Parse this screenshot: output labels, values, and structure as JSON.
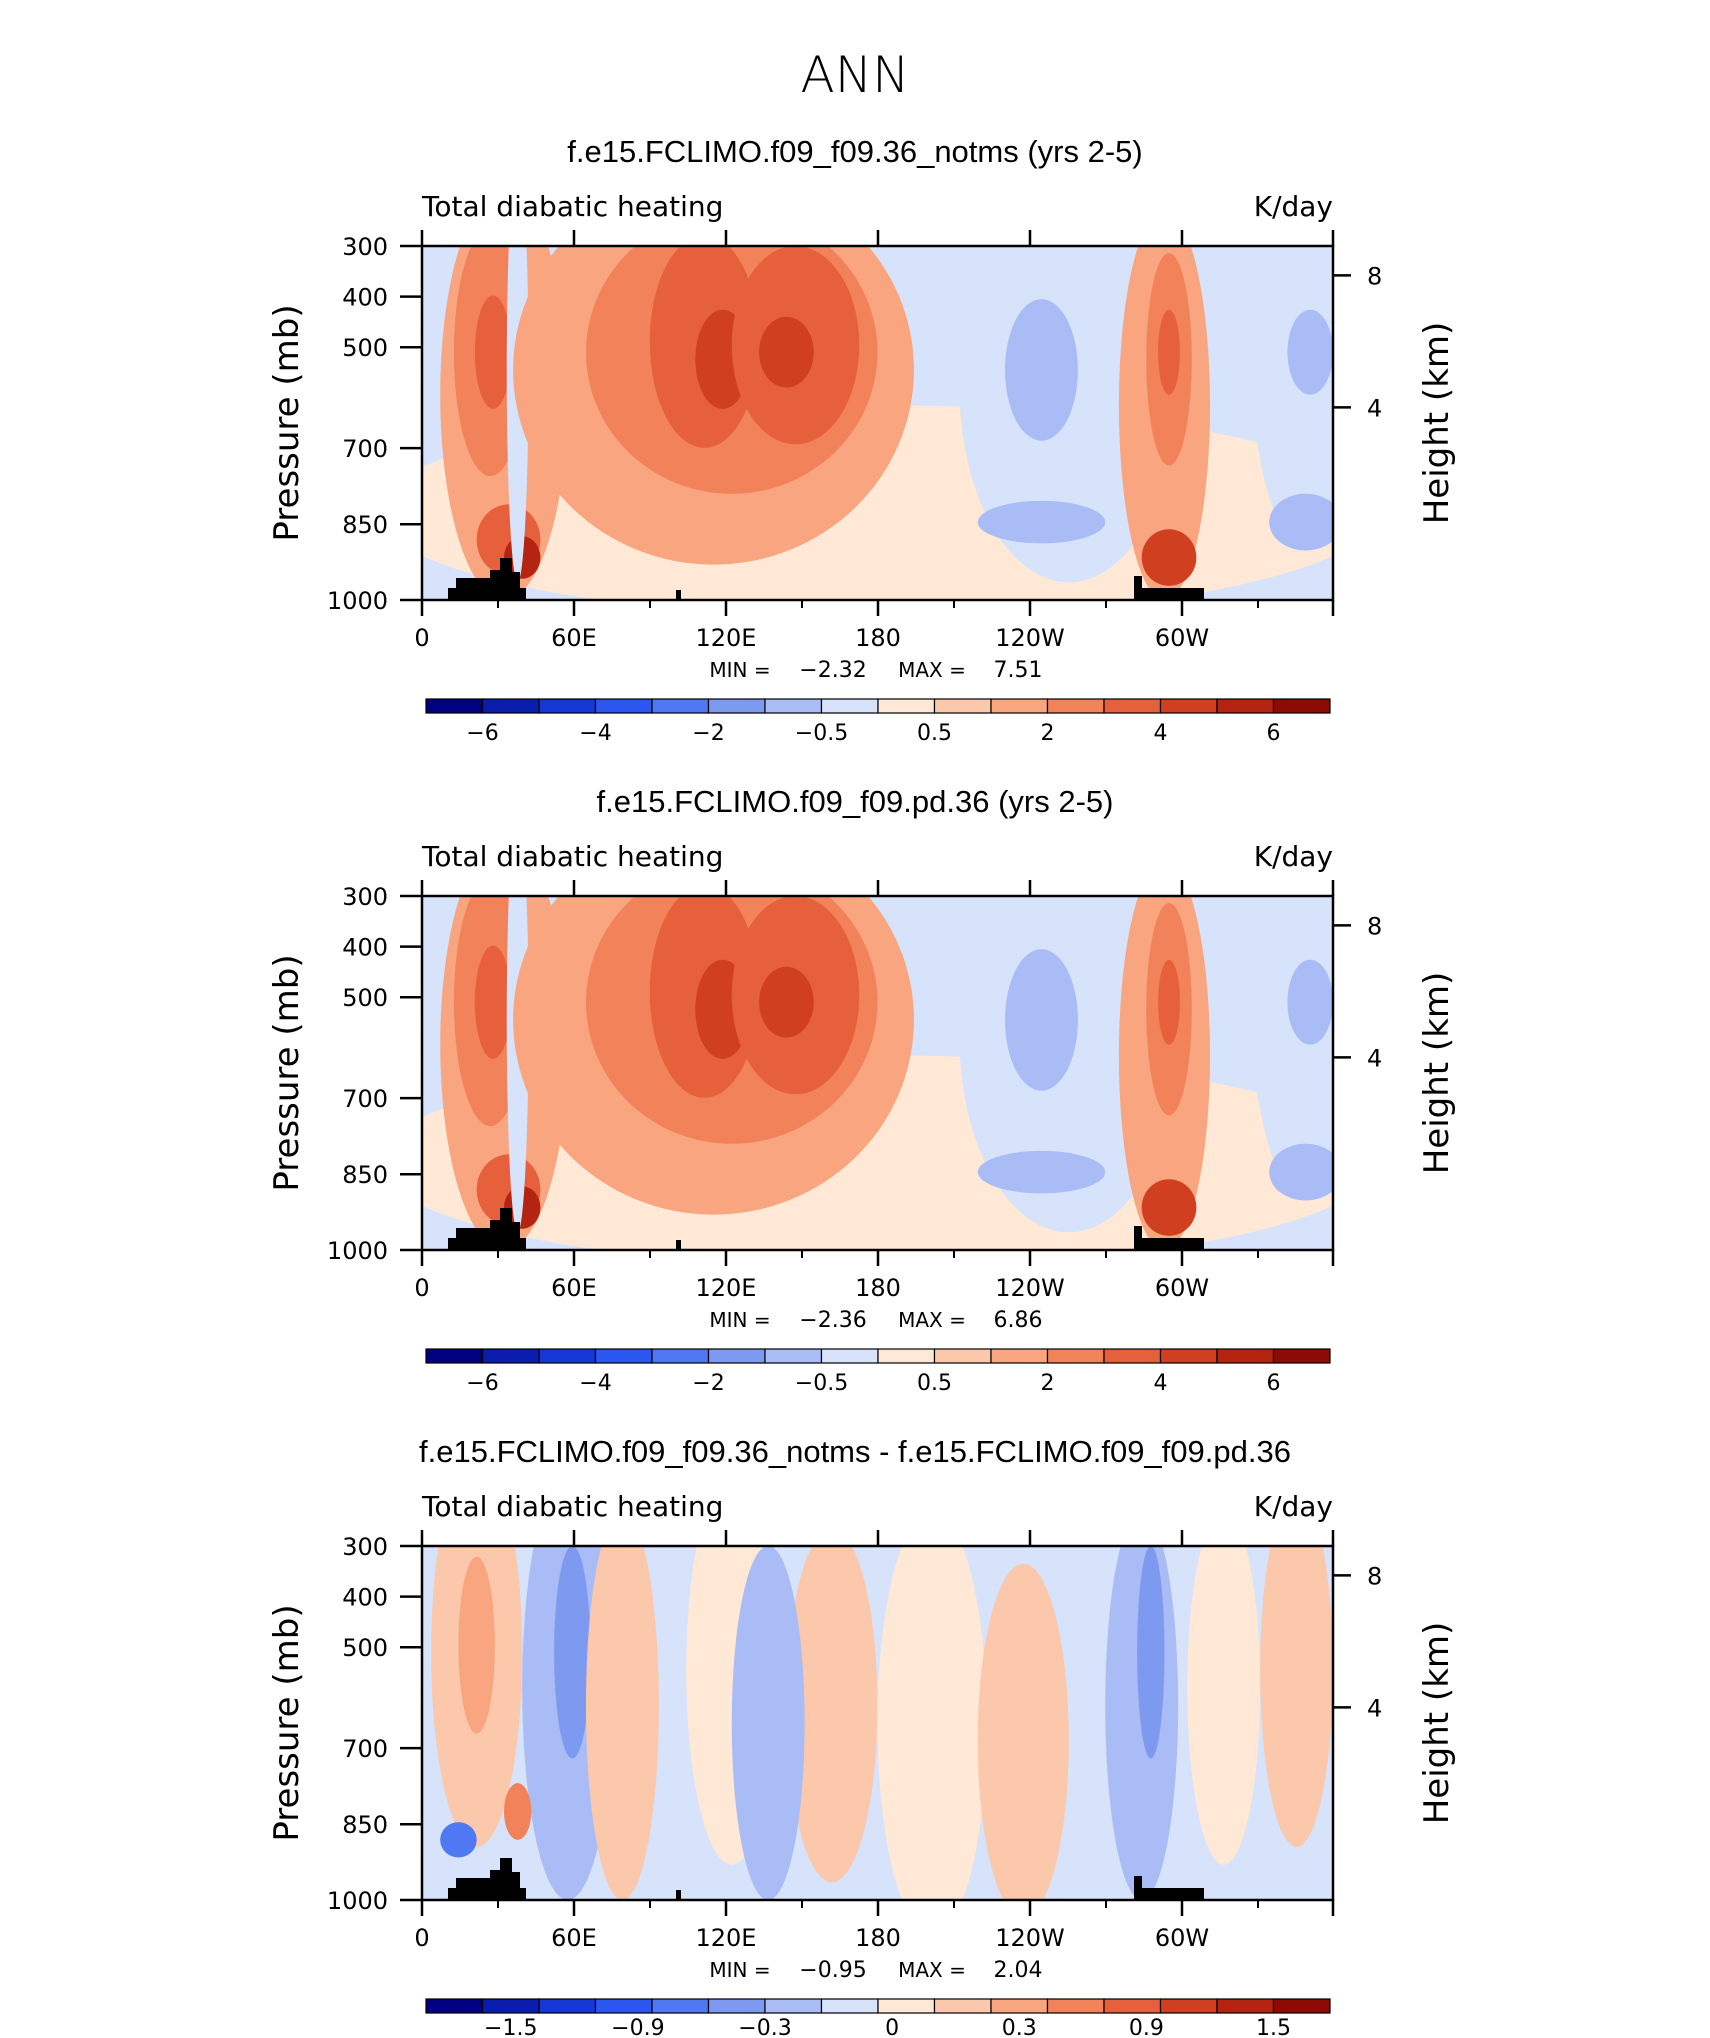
{
  "page_title": "ANN",
  "colors": {
    "diverging_18": [
      "#000080",
      "#0a1dae",
      "#1437d6",
      "#2b57f0",
      "#4f78f2",
      "#7e99f0",
      "#a9bcf5",
      "#d6e3fb",
      "#ffe9d6",
      "#fcc8ab",
      "#f8a580",
      "#f2825a",
      "#e6603c",
      "#d03f20",
      "#b42410",
      "#8e0a04"
    ],
    "terrain": "#000000"
  },
  "chart_data": [
    {
      "type": "heatmap",
      "title": "f.e15.FCLIMO.f09_f09.36_notms (yrs 2-5)",
      "left_string": "Total diabatic heating",
      "right_string": "K/day",
      "xlabel": "",
      "ylabel": "Pressure (mb)",
      "y2label": "Height (km)",
      "x_ticks": [
        "0",
        "60E",
        "120E",
        "180",
        "120W",
        "60W"
      ],
      "y_ticks": [
        "300",
        "400",
        "500",
        "700",
        "850",
        "1000"
      ],
      "y2_ticks": [
        "8",
        "4"
      ],
      "min_label": "MIN =",
      "min_value": "−2.32",
      "max_label": "MAX =",
      "max_value": "7.51",
      "colorbar_labels": [
        "−6",
        "−4",
        "−2",
        "−0.5",
        "0.5",
        "2",
        "4",
        "6"
      ],
      "levels": [
        -7,
        -6,
        -5,
        -4,
        -3,
        -2,
        -1,
        -0.5,
        0.5,
        1,
        2,
        3,
        4,
        5,
        6,
        7
      ],
      "value_range": [
        -2.32,
        7.51
      ]
    },
    {
      "type": "heatmap",
      "title": "f.e15.FCLIMO.f09_f09.pd.36 (yrs 2-5)",
      "left_string": "Total diabatic heating",
      "right_string": "K/day",
      "xlabel": "",
      "ylabel": "Pressure (mb)",
      "y2label": "Height (km)",
      "x_ticks": [
        "0",
        "60E",
        "120E",
        "180",
        "120W",
        "60W"
      ],
      "y_ticks": [
        "300",
        "400",
        "500",
        "700",
        "850",
        "1000"
      ],
      "y2_ticks": [
        "8",
        "4"
      ],
      "min_label": "MIN =",
      "min_value": "−2.36",
      "max_label": "MAX =",
      "max_value": "6.86",
      "colorbar_labels": [
        "−6",
        "−4",
        "−2",
        "−0.5",
        "0.5",
        "2",
        "4",
        "6"
      ],
      "levels": [
        -7,
        -6,
        -5,
        -4,
        -3,
        -2,
        -1,
        -0.5,
        0.5,
        1,
        2,
        3,
        4,
        5,
        6,
        7
      ],
      "value_range": [
        -2.36,
        6.86
      ]
    },
    {
      "type": "heatmap",
      "title": "f.e15.FCLIMO.f09_f09.36_notms - f.e15.FCLIMO.f09_f09.pd.36",
      "left_string": "Total diabatic heating",
      "right_string": "K/day",
      "xlabel": "",
      "ylabel": "Pressure (mb)",
      "y2label": "Height (km)",
      "x_ticks": [
        "0",
        "60E",
        "120E",
        "180",
        "120W",
        "60W"
      ],
      "y_ticks": [
        "300",
        "400",
        "500",
        "700",
        "850",
        "1000"
      ],
      "y2_ticks": [
        "8",
        "4"
      ],
      "min_label": "MIN =",
      "min_value": "−0.95",
      "max_label": "MAX =",
      "max_value": "2.04",
      "colorbar_labels": [
        "−1.5",
        "−0.9",
        "−0.3",
        "0",
        "0.3",
        "0.9",
        "1.5"
      ],
      "levels": [
        -2.1,
        -1.8,
        -1.5,
        -1.2,
        -0.9,
        -0.6,
        -0.3,
        0,
        0.3,
        0.6,
        0.9,
        1.2,
        1.5,
        1.8,
        2.1
      ],
      "value_range": [
        -0.95,
        2.04
      ]
    }
  ]
}
